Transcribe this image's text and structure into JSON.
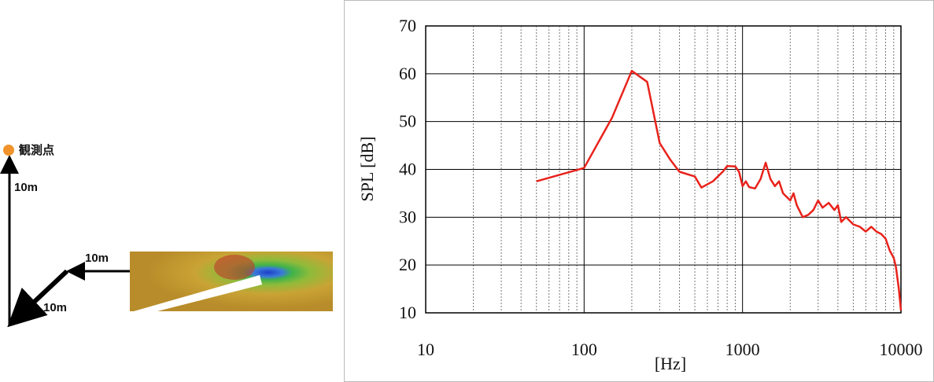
{
  "diagram": {
    "observer_label": "観測点",
    "vertical_distance": "10m",
    "horizontal_distance": "10m",
    "diagonal_distance": "10m"
  },
  "chart_data": {
    "type": "line",
    "xlabel": "[Hz]",
    "ylabel": "SPL [dB]",
    "color": "#e8231c",
    "log_x": true,
    "grid": true,
    "x": [
      50,
      100,
      150,
      200,
      250,
      300,
      350,
      400,
      500,
      550,
      650,
      750,
      800,
      900,
      950,
      1000,
      1050,
      1100,
      1200,
      1300,
      1400,
      1500,
      1600,
      1700,
      1800,
      2000,
      2100,
      2200,
      2400,
      2600,
      2800,
      3000,
      3200,
      3500,
      3800,
      4000,
      4200,
      4500,
      5000,
      5500,
      6000,
      6500,
      7000,
      7500,
      8000,
      8500,
      9000,
      9300,
      9700,
      10000
    ],
    "values": [
      37.5,
      40.3,
      50.8,
      60.6,
      58.3,
      45.5,
      42,
      39.5,
      38.5,
      36.2,
      37.5,
      39.5,
      40.7,
      40.6,
      39.5,
      36.5,
      37.5,
      36.3,
      36,
      38,
      41.4,
      38,
      36.5,
      37.5,
      35,
      33.5,
      35,
      32.5,
      30,
      30.5,
      31.5,
      33.5,
      32,
      33,
      31.5,
      32.5,
      29,
      30,
      28.5,
      28,
      27,
      28,
      27,
      26.5,
      25.5,
      23,
      21.5,
      19.5,
      15,
      10.5
    ],
    "xlim": [
      10,
      10000
    ],
    "ylim": [
      10,
      70
    ],
    "xticks": [
      10,
      100,
      1000,
      10000
    ],
    "yticks": [
      10,
      20,
      30,
      40,
      50,
      60,
      70
    ]
  }
}
